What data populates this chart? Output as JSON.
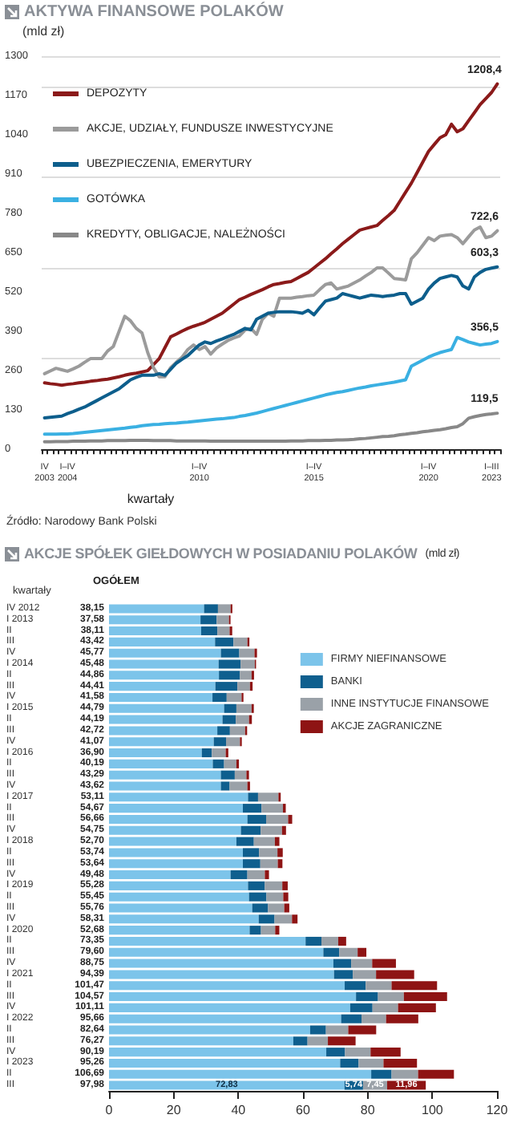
{
  "chart_data": [
    {
      "type": "line",
      "title": "AKTYWA FINANSOWE POLAKÓW",
      "subtitle": "(mld zł)",
      "xlabel": "kwartały",
      "categories": [
        "IV 2003",
        null,
        null,
        null,
        "I–IV 2004",
        null,
        null,
        null,
        null,
        null,
        null,
        null,
        null,
        null,
        null,
        null,
        null,
        null,
        null,
        null,
        null,
        null,
        null,
        null,
        null,
        null,
        null,
        "I–IV 2010",
        null,
        null,
        null,
        null,
        null,
        null,
        null,
        null,
        null,
        null,
        null,
        null,
        null,
        null,
        null,
        null,
        null,
        null,
        null,
        "I–IV 2015",
        null,
        null,
        null,
        null,
        null,
        null,
        null,
        null,
        null,
        null,
        null,
        null,
        null,
        null,
        null,
        null,
        null,
        null,
        null,
        "I–IV 2020",
        null,
        null,
        null,
        null,
        null,
        null,
        null,
        null,
        null,
        null,
        "I–III 2023",
        null
      ],
      "series": [
        {
          "name": "DEPOZYTY",
          "color": "#8b1a1a",
          "values": [
            220,
            217,
            215,
            212,
            215,
            217,
            220,
            222,
            225,
            227,
            230,
            232,
            236,
            240,
            245,
            249,
            252,
            256,
            260,
            280,
            300,
            336,
            372,
            381,
            391,
            400,
            407,
            413,
            420,
            430,
            440,
            450,
            465,
            480,
            495,
            503,
            512,
            520,
            528,
            537,
            545,
            548,
            552,
            555,
            565,
            575,
            585,
            600,
            615,
            630,
            647,
            663,
            680,
            695,
            710,
            725,
            730,
            735,
            740,
            757,
            773,
            790,
            820,
            850,
            880,
            915,
            950,
            985,
            1008,
            1030,
            1040,
            1075,
            1050,
            1060,
            1087,
            1113,
            1140,
            1160,
            1180,
            1208.4
          ],
          "value_labels": [
            null,
            null,
            null,
            null,
            null,
            null,
            null,
            null,
            null,
            null,
            null,
            null,
            null,
            null,
            null,
            null,
            null,
            null,
            null,
            null,
            null,
            null,
            null,
            null,
            null,
            null,
            null,
            null,
            null,
            null,
            null,
            null,
            null,
            null,
            null,
            null,
            null,
            null,
            null,
            null,
            null,
            null,
            null,
            null,
            null,
            null,
            null,
            null,
            null,
            null,
            null,
            null,
            null,
            null,
            null,
            null,
            null,
            null,
            null,
            null,
            null,
            null,
            null,
            null,
            null,
            null,
            null,
            null,
            null,
            null,
            null,
            null,
            null,
            null,
            null,
            null,
            null,
            null,
            null,
            "1208,4"
          ]
        },
        {
          "name": "AKCJE, UDZIAŁY, FUNDUSZE INWESTYCYJNE",
          "color": "#9b9b9b",
          "values": [
            250,
            259,
            268,
            263,
            258,
            266,
            275,
            288,
            300,
            300,
            300,
            325,
            340,
            390,
            440,
            425,
            400,
            385,
            320,
            270,
            240,
            240,
            270,
            288,
            305,
            330,
            345,
            330,
            340,
            315,
            335,
            348,
            360,
            368,
            375,
            395,
            400,
            380,
            430,
            450,
            440,
            500,
            500,
            500,
            503,
            505,
            508,
            510,
            528,
            545,
            550,
            530,
            535,
            540,
            550,
            560,
            573,
            585,
            600,
            600,
            583,
            565,
            563,
            560,
            630,
            650,
            675,
            700,
            690,
            705,
            708,
            710,
            700,
            680,
            703,
            725,
            735,
            700,
            705,
            722.6
          ],
          "value_labels": [
            null,
            null,
            null,
            null,
            null,
            null,
            null,
            null,
            null,
            null,
            null,
            null,
            null,
            null,
            null,
            null,
            null,
            null,
            null,
            null,
            null,
            null,
            null,
            null,
            null,
            null,
            null,
            null,
            null,
            null,
            null,
            null,
            null,
            null,
            null,
            null,
            null,
            null,
            null,
            null,
            null,
            null,
            null,
            null,
            null,
            null,
            null,
            null,
            null,
            null,
            null,
            null,
            null,
            null,
            null,
            null,
            null,
            null,
            null,
            null,
            null,
            null,
            null,
            null,
            null,
            null,
            null,
            null,
            null,
            null,
            null,
            null,
            null,
            null,
            null,
            null,
            null,
            null,
            null,
            "722,6"
          ]
        },
        {
          "name": "UBEZPIECZENIA, EMERYTURY",
          "color": "#0d5e8c",
          "values": [
            104,
            106,
            108,
            110,
            118,
            125,
            133,
            140,
            150,
            160,
            170,
            180,
            190,
            200,
            215,
            230,
            238,
            245,
            245,
            245,
            250,
            245,
            265,
            285,
            298,
            310,
            328,
            345,
            355,
            350,
            358,
            365,
            373,
            380,
            390,
            400,
            395,
            430,
            440,
            450,
            453,
            455,
            455,
            455,
            453,
            450,
            460,
            445,
            468,
            490,
            495,
            500,
            515,
            510,
            505,
            500,
            505,
            510,
            508,
            505,
            508,
            510,
            515,
            515,
            480,
            490,
            500,
            530,
            550,
            565,
            570,
            575,
            570,
            540,
            530,
            570,
            585,
            595,
            599,
            603.3
          ],
          "value_labels": [
            null,
            null,
            null,
            null,
            null,
            null,
            null,
            null,
            null,
            null,
            null,
            null,
            null,
            null,
            null,
            null,
            null,
            null,
            null,
            null,
            null,
            null,
            null,
            null,
            null,
            null,
            null,
            null,
            null,
            null,
            null,
            null,
            null,
            null,
            null,
            null,
            null,
            null,
            null,
            null,
            null,
            null,
            null,
            null,
            null,
            null,
            null,
            null,
            null,
            null,
            null,
            null,
            null,
            null,
            null,
            null,
            null,
            null,
            null,
            null,
            null,
            null,
            null,
            null,
            null,
            null,
            null,
            null,
            null,
            null,
            null,
            null,
            null,
            null,
            null,
            null,
            null,
            null,
            null,
            "603,3"
          ]
        },
        {
          "name": "GOTÓWKA",
          "color": "#3ab0e2",
          "values": [
            50,
            50,
            50,
            51,
            51,
            52,
            54,
            56,
            58,
            60,
            62,
            64,
            66,
            68,
            70,
            73,
            75,
            78,
            80,
            82,
            83,
            85,
            86,
            87,
            89,
            90,
            92,
            94,
            96,
            98,
            100,
            101,
            103,
            105,
            109,
            112,
            116,
            120,
            125,
            130,
            135,
            140,
            145,
            150,
            155,
            160,
            165,
            170,
            175,
            180,
            184,
            188,
            191,
            195,
            199,
            203,
            206,
            210,
            213,
            216,
            219,
            222,
            226,
            230,
            275,
            285,
            295,
            305,
            313,
            320,
            325,
            330,
            370,
            363,
            355,
            350,
            345,
            348,
            350,
            356.5
          ],
          "value_labels": [
            null,
            null,
            null,
            null,
            null,
            null,
            null,
            null,
            null,
            null,
            null,
            null,
            null,
            null,
            null,
            null,
            null,
            null,
            null,
            null,
            null,
            null,
            null,
            null,
            null,
            null,
            null,
            null,
            null,
            null,
            null,
            null,
            null,
            null,
            null,
            null,
            null,
            null,
            null,
            null,
            null,
            null,
            null,
            null,
            null,
            null,
            null,
            null,
            null,
            null,
            null,
            null,
            null,
            null,
            null,
            null,
            null,
            null,
            null,
            null,
            null,
            null,
            null,
            null,
            null,
            null,
            null,
            null,
            null,
            null,
            null,
            null,
            null,
            null,
            null,
            null,
            null,
            null,
            null,
            "356,5"
          ]
        },
        {
          "name": "KREDYTY, OBLIGACJE, NALEŻNOŚCI",
          "color": "#888888",
          "values": [
            25,
            25,
            26,
            26,
            26,
            27,
            27,
            27,
            28,
            28,
            28,
            29,
            29,
            29,
            29,
            30,
            30,
            30,
            30,
            29,
            29,
            29,
            29,
            28,
            28,
            28,
            28,
            28,
            28,
            27,
            27,
            27,
            27,
            27,
            27,
            27,
            27,
            27,
            27,
            27,
            27,
            27,
            27,
            28,
            28,
            28,
            29,
            29,
            29,
            30,
            30,
            31,
            31,
            32,
            33,
            35,
            36,
            38,
            40,
            42,
            43,
            45,
            48,
            50,
            53,
            55,
            58,
            60,
            63,
            65,
            68,
            72,
            75,
            85,
            103,
            108,
            112,
            115,
            117,
            119.5
          ],
          "value_labels": [
            null,
            null,
            null,
            null,
            null,
            null,
            null,
            null,
            null,
            null,
            null,
            null,
            null,
            null,
            null,
            null,
            null,
            null,
            null,
            null,
            null,
            null,
            null,
            null,
            null,
            null,
            null,
            null,
            null,
            null,
            null,
            null,
            null,
            null,
            null,
            null,
            null,
            null,
            null,
            null,
            null,
            null,
            null,
            null,
            null,
            null,
            null,
            null,
            null,
            null,
            null,
            null,
            null,
            null,
            null,
            null,
            null,
            null,
            null,
            null,
            null,
            null,
            null,
            null,
            null,
            null,
            null,
            null,
            null,
            null,
            null,
            null,
            null,
            null,
            null,
            null,
            null,
            null,
            null,
            "119,5"
          ]
        }
      ],
      "ylim": [
        0,
        1300
      ],
      "yticks": [
        0,
        130,
        260,
        390,
        520,
        650,
        780,
        910,
        1040,
        1170,
        1300
      ],
      "grid": "y",
      "legend": "top left",
      "marker": "none",
      "annotations": [
        "Źródło: Narodowy Bank Polski"
      ]
    },
    {
      "type": "bar",
      "orientation": "horizontal",
      "stacked": true,
      "title": "AKCJE SPÓŁEK GIEŁDOWYCH W POSIADANIU POLAKÓW",
      "subtitle": "(mld zł)",
      "ylabel": "kwartały",
      "categories": [
        "IV 2012",
        "I 2013",
        "II",
        "III",
        "IV",
        "I 2014",
        "II",
        "III",
        "IV",
        "I 2015",
        "II",
        "III",
        "IV",
        "I 2016",
        "II",
        "III",
        "IV",
        "I 2017",
        "II",
        "III",
        "IV",
        "I 2018",
        "II",
        "III",
        "IV",
        "I 2019",
        "II",
        "III",
        "IV",
        "I 2020",
        "II",
        "III",
        "IV",
        "I 2021",
        "II",
        "III",
        "IV",
        "I 2022",
        "II",
        "III",
        "IV",
        "I 2023",
        "II",
        "III"
      ],
      "totals": [
        "38,15",
        "37,58",
        "38,11",
        "43,42",
        "45,77",
        "45,48",
        "44,86",
        "44,41",
        "41,58",
        "44,79",
        "44,19",
        "42,72",
        "41,07",
        "36,90",
        "40,19",
        "43,29",
        "43,62",
        "53,11",
        "54,67",
        "56,66",
        "54,75",
        "52,70",
        "53,74",
        "53,64",
        "49,48",
        "55,28",
        "55,45",
        "55,76",
        "58,31",
        "52,68",
        "73,35",
        "79,60",
        "88,75",
        "94,39",
        "101,47",
        "104,57",
        "101,11",
        "95,66",
        "82,64",
        "76,27",
        "90,19",
        "95,26",
        "106,69",
        "97,98"
      ],
      "series": [
        {
          "name": "FIRMY NIEFINANSOWE",
          "color": "#7cc4ea",
          "values": [
            29.4,
            28.3,
            28.5,
            32.8,
            34.6,
            33.9,
            34.0,
            32.9,
            32.0,
            35.6,
            35.1,
            33.5,
            32.4,
            28.7,
            32.1,
            34.6,
            34.6,
            43.0,
            41.4,
            42.8,
            40.8,
            39.4,
            41.4,
            41.4,
            37.6,
            43.0,
            43.3,
            44.3,
            46.3,
            43.5,
            60.8,
            66.3,
            69.4,
            69.6,
            72.9,
            76.4,
            74.6,
            71.8,
            62.2,
            57.0,
            67.2,
            71.5,
            81.1,
            72.83
          ],
          "value_labels": [
            null,
            null,
            null,
            null,
            null,
            null,
            null,
            null,
            null,
            null,
            null,
            null,
            null,
            null,
            null,
            null,
            null,
            null,
            null,
            null,
            null,
            null,
            null,
            null,
            null,
            null,
            null,
            null,
            null,
            null,
            null,
            null,
            null,
            null,
            null,
            null,
            null,
            null,
            null,
            null,
            null,
            null,
            null,
            "72,83"
          ]
        },
        {
          "name": "BANKI",
          "color": "#0f5f8e",
          "values": [
            4.3,
            5.0,
            5.0,
            5.7,
            5.7,
            6.8,
            6.5,
            6.8,
            4.4,
            3.8,
            4.1,
            3.9,
            3.8,
            3.1,
            3.5,
            4.3,
            2.7,
            3.1,
            5.8,
            5.8,
            6.1,
            5.4,
            5.0,
            5.4,
            5.2,
            5.2,
            5.4,
            4.9,
            4.9,
            3.5,
            4.9,
            4.9,
            5.5,
            5.8,
            6.5,
            6.8,
            6.9,
            6.3,
            4.9,
            4.4,
            5.8,
            5.7,
            6.3,
            5.74
          ],
          "value_labels": [
            null,
            null,
            null,
            null,
            null,
            null,
            null,
            null,
            null,
            null,
            null,
            null,
            null,
            null,
            null,
            null,
            null,
            null,
            null,
            null,
            null,
            null,
            null,
            null,
            null,
            null,
            null,
            null,
            null,
            null,
            null,
            null,
            null,
            null,
            null,
            null,
            null,
            null,
            null,
            null,
            null,
            null,
            null,
            "5,74"
          ]
        },
        {
          "name": "INNE INSTYTUCJE FINANSOWE",
          "color": "#9aa1a8",
          "values": [
            3.9,
            3.8,
            3.8,
            4.3,
            4.7,
            4.4,
            3.6,
            3.9,
            4.6,
            4.7,
            4.1,
            4.7,
            4.3,
            4.3,
            3.8,
            3.6,
            5.5,
            6.3,
            6.6,
            6.8,
            6.6,
            6.5,
            5.7,
            5.4,
            5.4,
            5.4,
            5.2,
            5.0,
            5.4,
            4.4,
            5.2,
            5.7,
            6.5,
            7.2,
            8.0,
            8.0,
            7.9,
            7.6,
            6.9,
            6.3,
            7.9,
            7.7,
            8.2,
            7.45
          ],
          "value_labels": [
            null,
            null,
            null,
            null,
            null,
            null,
            null,
            null,
            null,
            null,
            null,
            null,
            null,
            null,
            null,
            null,
            null,
            null,
            null,
            null,
            null,
            null,
            null,
            null,
            null,
            null,
            null,
            null,
            null,
            null,
            null,
            null,
            null,
            null,
            null,
            null,
            null,
            null,
            null,
            null,
            null,
            null,
            null,
            "7,45"
          ]
        },
        {
          "name": "AKCJE ZAGRANICZNE",
          "color": "#8e1414",
          "values": [
            0.55,
            0.48,
            0.81,
            0.62,
            0.77,
            0.38,
            0.76,
            0.81,
            0.58,
            0.69,
            0.89,
            0.62,
            0.57,
            0.8,
            0.79,
            0.79,
            0.82,
            0.71,
            0.87,
            1.26,
            1.25,
            1.4,
            1.64,
            1.44,
            1.28,
            1.68,
            1.55,
            1.56,
            1.71,
            1.28,
            2.45,
            2.7,
            7.35,
            11.79,
            14.07,
            13.37,
            11.71,
            9.96,
            8.64,
            8.57,
            9.29,
            10.36,
            11.09,
            11.96
          ],
          "value_labels": [
            null,
            null,
            null,
            null,
            null,
            null,
            null,
            null,
            null,
            null,
            null,
            null,
            null,
            null,
            null,
            null,
            null,
            null,
            null,
            null,
            null,
            null,
            null,
            null,
            null,
            null,
            null,
            null,
            null,
            null,
            null,
            null,
            null,
            null,
            null,
            null,
            null,
            null,
            null,
            null,
            null,
            null,
            null,
            "11,96"
          ]
        }
      ],
      "xlim": [
        0,
        120
      ],
      "xticks": [
        0,
        20,
        40,
        60,
        80,
        100,
        120
      ],
      "legend": "top right",
      "annotations": [
        "OGÓŁEM"
      ]
    }
  ]
}
